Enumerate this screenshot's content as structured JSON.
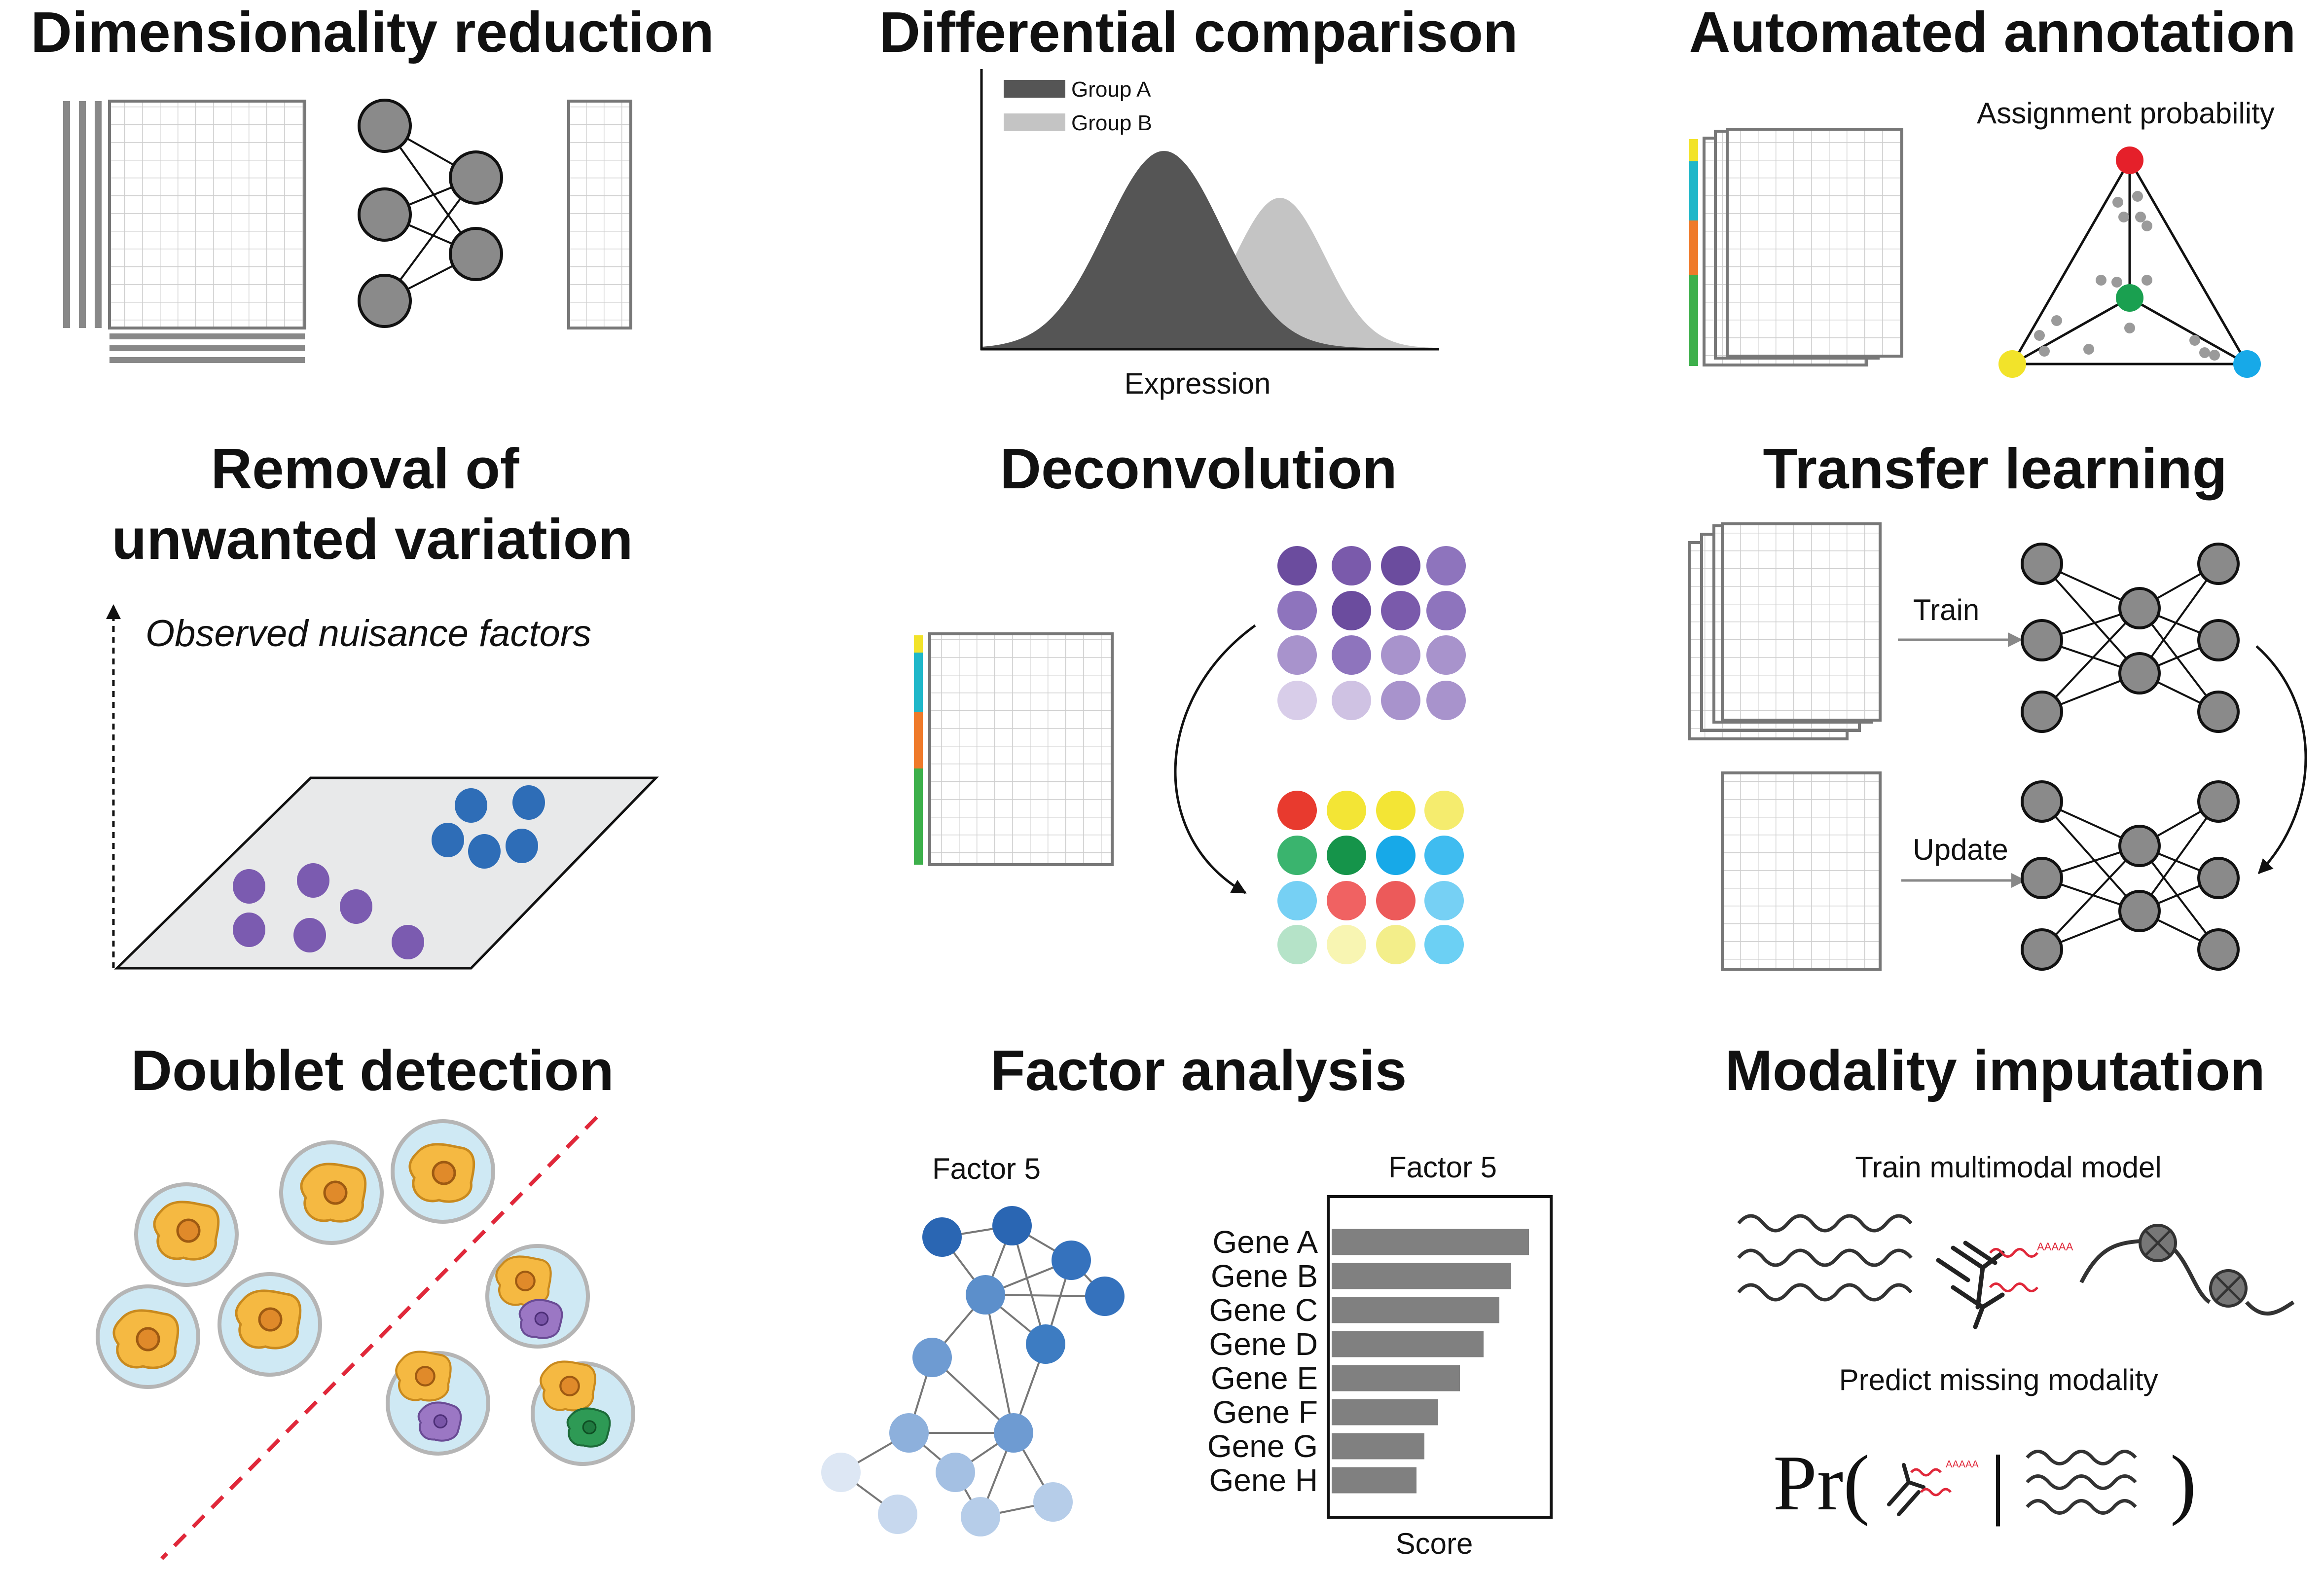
{
  "panels": {
    "dimensionality_reduction": {
      "title": "Dimensionality reduction"
    },
    "differential_comparison": {
      "title": "Differential comparison",
      "legend": [
        "Group A",
        "Group B"
      ],
      "xlabel": "Expression",
      "colors": {
        "group_a": "#555555",
        "group_b": "#c4c4c4"
      }
    },
    "automated_annotation": {
      "title": "Automated annotation",
      "simplex_label": "Assignment probability",
      "vertex_colors": [
        "#e5202a",
        "#f2e32a",
        "#17a9e8",
        "#1aa050"
      ]
    },
    "removal_unwanted_variation": {
      "title_line1": "Removal of",
      "title_line2": "unwanted variation",
      "axis_label": "Observed nuisance factors"
    },
    "deconvolution": {
      "title": "Deconvolution"
    },
    "transfer_learning": {
      "title": "Transfer learning",
      "train_label": "Train",
      "update_label": "Update"
    },
    "doublet_detection": {
      "title": "Doublet detection"
    },
    "factor_analysis": {
      "title": "Factor analysis",
      "network_label": "Factor 5",
      "bar_title": "Factor 5",
      "xlabel": "Score"
    },
    "modality_imputation": {
      "title": "Modality imputation",
      "train_label": "Train multimodal model",
      "predict_label": "Predict missing modality",
      "formula_prefix": "Pr(",
      "formula_bar": "|",
      "formula_close": ")"
    }
  },
  "chart_data": {
    "type": "bar",
    "title": "Factor 5",
    "xlabel": "Score",
    "ylabel": "",
    "categories": [
      "Gene A",
      "Gene B",
      "Gene C",
      "Gene D",
      "Gene E",
      "Gene F",
      "Gene G",
      "Gene H"
    ],
    "values": [
      1.0,
      0.91,
      0.85,
      0.77,
      0.65,
      0.54,
      0.47,
      0.43
    ],
    "xlim": [
      0,
      1.1
    ],
    "color": "#808080"
  }
}
